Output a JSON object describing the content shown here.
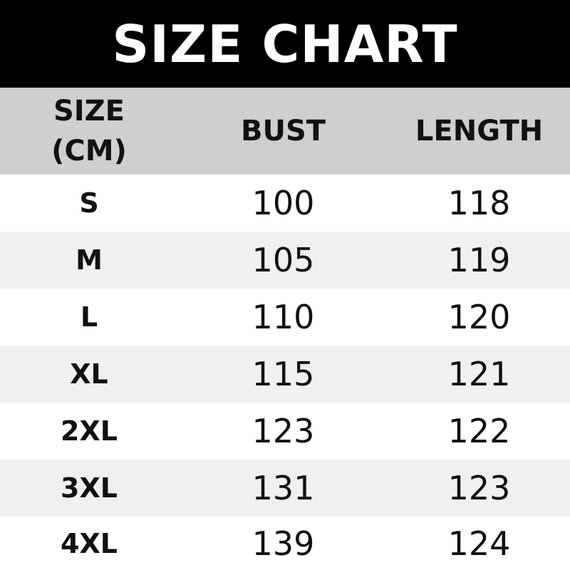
{
  "chart_data": {
    "type": "table",
    "title": "SIZE CHART",
    "columns": [
      "SIZE (CM)",
      "BUST",
      "LENGTH"
    ],
    "header_first_lines": [
      "SIZE",
      "(CM)"
    ],
    "rows": [
      [
        "S",
        "100",
        "118"
      ],
      [
        "M",
        "105",
        "119"
      ],
      [
        "L",
        "110",
        "120"
      ],
      [
        "XL",
        "115",
        "121"
      ],
      [
        "2XL",
        "123",
        "122"
      ],
      [
        "3XL",
        "131",
        "123"
      ],
      [
        "4XL",
        "139",
        "124"
      ]
    ]
  },
  "colors": {
    "title_bg": "#000000",
    "header_bg": "#cfcfcf",
    "stripe": "#f0f0f0"
  }
}
